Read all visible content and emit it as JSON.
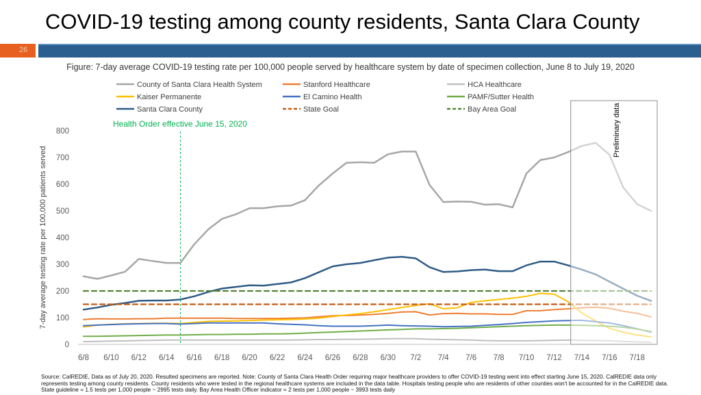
{
  "slide": {
    "title": "COVID-19 testing among county residents, Santa Clara County",
    "page_number": "26",
    "footnote": "Source: CalREDIE, Data as of July 20, 2020. Resulted specimens are reported. Note: County of Santa Clara Health Order requiring major healthcare providers to offer COVID-19 testing went into effect starting June 15, 2020. CalREDIE data only represents testing among county residents. County residents who were tested in the regional healthcare systems are included in the data table. Hospitals testing people who are residents of other counties won't be accounted for in the CalREDIE data. State guideline = 1.5 tests per 1,000 people ~ 2995 tests daily. Bay Area Health Officer indicator = 2 tests per 1,000 people ~ 3993 tests daily"
  },
  "colors": {
    "accent_orange": "#e8601f",
    "accent_blue": "#2a5f90"
  },
  "chart_data": {
    "type": "line",
    "title": "Figure: 7-day average COVID-19 testing rate per 100,000 people served by healthcare system by date of specimen collection, June 8 to July 19, 2020",
    "xlabel": "",
    "ylabel": "7-day average testing rate per 100,000 patients served",
    "ylim": [
      0,
      800
    ],
    "yticks": [
      0,
      100,
      200,
      300,
      400,
      500,
      600,
      700,
      800
    ],
    "grid": false,
    "legend_position": "top",
    "x": [
      "6/8",
      "6/9",
      "6/10",
      "6/11",
      "6/12",
      "6/13",
      "6/14",
      "6/15",
      "6/16",
      "6/17",
      "6/18",
      "6/19",
      "6/20",
      "6/21",
      "6/22",
      "6/23",
      "6/24",
      "6/25",
      "6/26",
      "6/27",
      "6/28",
      "6/29",
      "6/30",
      "7/1",
      "7/2",
      "7/3",
      "7/4",
      "7/5",
      "7/6",
      "7/7",
      "7/8",
      "7/9",
      "7/10",
      "7/11",
      "7/12",
      "7/13",
      "7/14",
      "7/15",
      "7/16",
      "7/17",
      "7/18",
      "7/19"
    ],
    "xtick_labels": [
      "6/8",
      "6/10",
      "6/12",
      "6/14",
      "6/16",
      "6/18",
      "6/20",
      "6/22",
      "6/24",
      "6/26",
      "6/28",
      "6/30",
      "7/2",
      "7/4",
      "7/6",
      "7/8",
      "7/10",
      "7/12",
      "7/14",
      "7/16",
      "7/18"
    ],
    "series": [
      {
        "name": "County of Santa Clara Health System",
        "color": "#a6a6a6",
        "width": 2.5,
        "values": [
          255,
          245,
          258,
          272,
          320,
          312,
          305,
          305,
          375,
          430,
          470,
          487,
          510,
          510,
          517,
          520,
          540,
          595,
          640,
          680,
          682,
          680,
          712,
          722,
          722,
          597,
          533,
          535,
          534,
          523,
          525,
          513,
          640,
          690,
          700,
          720,
          743,
          755,
          710,
          587,
          525,
          500
        ]
      },
      {
        "name": "Stanford Healthcare",
        "color": "#ed7d31",
        "width": 2,
        "values": [
          93,
          96,
          95,
          95,
          96,
          96,
          98,
          98,
          98,
          98,
          98,
          97,
          97,
          97,
          97,
          98,
          99,
          103,
          107,
          108,
          110,
          112,
          116,
          121,
          122,
          110,
          115,
          116,
          114,
          114,
          112,
          112,
          126,
          126,
          130,
          133,
          137,
          139,
          135,
          124,
          116,
          103
        ]
      },
      {
        "name": "HCA Healthcare",
        "color": "#bfbfbf",
        "width": 2,
        "values": [
          10,
          11,
          12,
          13,
          14,
          15,
          16,
          16,
          16,
          16,
          16,
          16,
          16,
          16,
          16,
          16,
          17,
          18,
          18,
          19,
          19,
          20,
          21,
          21,
          21,
          19,
          18,
          17,
          16,
          14,
          13,
          13,
          13,
          14,
          15,
          16,
          15,
          14,
          13,
          11,
          9,
          8
        ]
      },
      {
        "name": "Kaiser Permanente",
        "color": "#ffc000",
        "width": 2,
        "values": [
          65,
          72,
          75,
          77,
          78,
          79,
          79,
          78,
          82,
          86,
          87,
          88,
          89,
          91,
          92,
          93,
          95,
          98,
          104,
          110,
          115,
          122,
          130,
          138,
          146,
          152,
          133,
          137,
          157,
          163,
          168,
          173,
          180,
          191,
          188,
          160,
          118,
          87,
          60,
          45,
          35,
          28
        ]
      },
      {
        "name": "El Camino Health",
        "color": "#4472c4",
        "width": 2,
        "values": [
          70,
          72,
          74,
          76,
          77,
          78,
          78,
          76,
          78,
          80,
          80,
          80,
          80,
          80,
          77,
          75,
          73,
          70,
          68,
          68,
          68,
          70,
          72,
          70,
          69,
          68,
          66,
          67,
          68,
          71,
          74,
          78,
          82,
          85,
          88,
          89,
          90,
          85,
          80,
          70,
          58,
          46
        ]
      },
      {
        "name": "PAMF/Sutter Health",
        "color": "#70ad47",
        "width": 2,
        "values": [
          30,
          30,
          31,
          32,
          33,
          34,
          35,
          35,
          36,
          37,
          37,
          38,
          38,
          39,
          39,
          40,
          42,
          44,
          46,
          48,
          50,
          52,
          54,
          56,
          58,
          58,
          59,
          60,
          62,
          64,
          66,
          68,
          70,
          71,
          72,
          72,
          71,
          70,
          68,
          64,
          57,
          48
        ]
      },
      {
        "name": "Santa Clara County",
        "color": "#2e5b85",
        "width": 2.5,
        "values": [
          130,
          138,
          148,
          155,
          163,
          164,
          164,
          168,
          180,
          196,
          209,
          215,
          221,
          220,
          226,
          232,
          248,
          270,
          292,
          300,
          305,
          315,
          325,
          328,
          322,
          289,
          271,
          273,
          278,
          280,
          274,
          274,
          296,
          310,
          310,
          296,
          280,
          262,
          235,
          208,
          182,
          163
        ]
      },
      {
        "name": "State Goal",
        "color": "#c55a11",
        "width": 2.2,
        "dash": "7,5",
        "values": [
          150,
          150,
          150,
          150,
          150,
          150,
          150,
          150,
          150,
          150,
          150,
          150,
          150,
          150,
          150,
          150,
          150,
          150,
          150,
          150,
          150,
          150,
          150,
          150,
          150,
          150,
          150,
          150,
          150,
          150,
          150,
          150,
          150,
          150,
          150,
          150,
          150,
          150,
          150,
          150,
          150,
          150
        ]
      },
      {
        "name": "Bay Area Goal",
        "color": "#548235",
        "width": 2.2,
        "dash": "7,5",
        "values": [
          200,
          200,
          200,
          200,
          200,
          200,
          200,
          200,
          200,
          200,
          200,
          200,
          200,
          200,
          200,
          200,
          200,
          200,
          200,
          200,
          200,
          200,
          200,
          200,
          200,
          200,
          200,
          200,
          200,
          200,
          200,
          200,
          200,
          200,
          200,
          200,
          200,
          200,
          200,
          200,
          200,
          200
        ]
      }
    ],
    "annotations": [
      {
        "text": "Health Order effective June 15, 2020",
        "x": "6/15",
        "color": "#00b050"
      },
      {
        "text": "Preliminary data",
        "x_range": [
          "7/13",
          "7/19"
        ]
      }
    ]
  }
}
